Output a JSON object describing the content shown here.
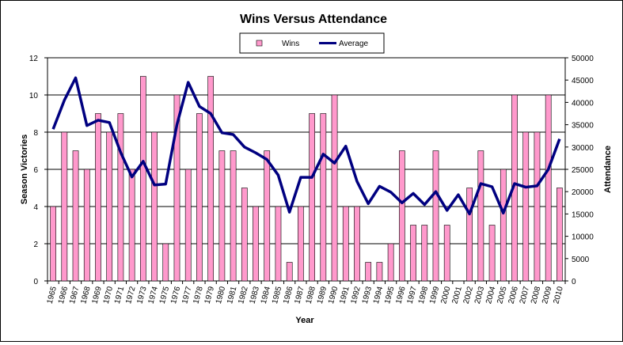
{
  "chart_data": {
    "type": "bar",
    "title": "Wins Versus Attendance",
    "xlabel": "Year",
    "ylabel": "Season Victories",
    "y2label": "Attendance",
    "ylim": [
      0,
      12
    ],
    "y2lim": [
      0,
      50000
    ],
    "yticks": [
      "0",
      "2",
      "4",
      "6",
      "8",
      "10",
      "12"
    ],
    "y2ticks": [
      "0",
      "5000",
      "10000",
      "15000",
      "20000",
      "25000",
      "30000",
      "35000",
      "40000",
      "45000",
      "50000"
    ],
    "grid": true,
    "legend": "top-center",
    "categories": [
      "1965",
      "1966",
      "1967",
      "1968",
      "1969",
      "1970",
      "1971",
      "1972",
      "1973",
      "1974",
      "1975",
      "1976",
      "1977",
      "1978",
      "1979",
      "1980",
      "1981",
      "1982",
      "1983",
      "1984",
      "1985",
      "1986",
      "1987",
      "1988",
      "1989",
      "1990",
      "1991",
      "1992",
      "1993",
      "1994",
      "1995",
      "1996",
      "1997",
      "1998",
      "1999",
      "2000",
      "2001",
      "2002",
      "2003",
      "2004",
      "2005",
      "2006",
      "2007",
      "2008",
      "2009",
      "2010"
    ],
    "series": [
      {
        "name": "Wins",
        "type": "bar",
        "axis": "left",
        "color": "#ff99cc",
        "values": [
          4,
          8,
          7,
          6,
          9,
          8,
          9,
          6,
          11,
          8,
          2,
          10,
          6,
          9,
          11,
          7,
          7,
          5,
          4,
          7,
          4,
          1,
          4,
          9,
          9,
          10,
          4,
          4,
          1,
          1,
          2,
          7,
          3,
          3,
          7,
          3,
          0,
          5,
          7,
          3,
          6,
          10,
          8,
          8,
          10,
          5
        ]
      },
      {
        "name": "Average",
        "type": "line",
        "axis": "right",
        "color": "#000080",
        "values": [
          34000,
          40500,
          45500,
          34800,
          36000,
          35500,
          28800,
          23300,
          26800,
          21500,
          21700,
          35000,
          44500,
          39100,
          37500,
          33200,
          32800,
          30000,
          28700,
          27200,
          23700,
          15400,
          23200,
          23200,
          28400,
          26400,
          30200,
          22300,
          17300,
          21200,
          19900,
          17500,
          19600,
          17100,
          20000,
          15800,
          19300,
          15000,
          21800,
          21100,
          15200,
          21800,
          21000,
          21300,
          25000,
          31800
        ]
      }
    ]
  }
}
